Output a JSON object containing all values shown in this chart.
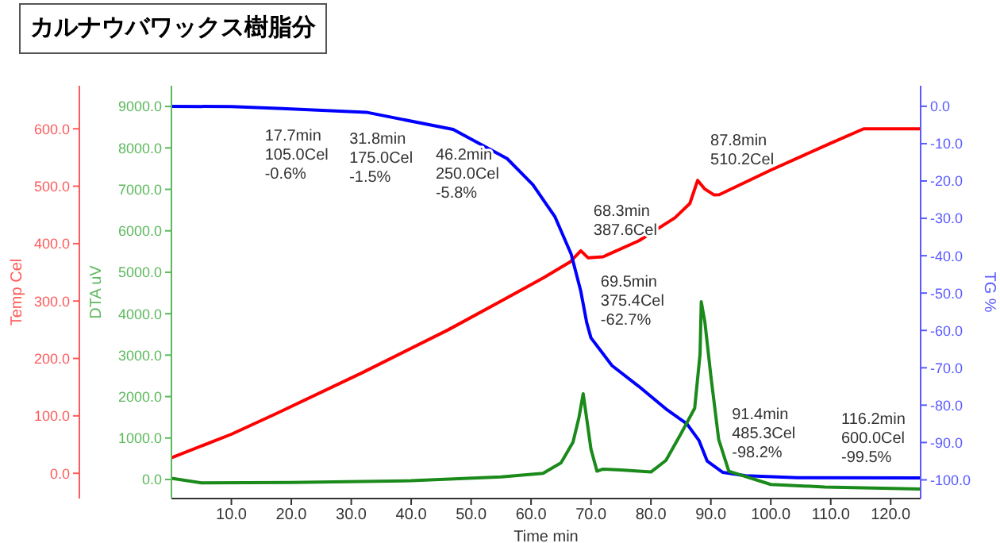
{
  "chart_data": {
    "type": "line",
    "title": "カルナウバワックス樹脂分",
    "xlabel": "Time min",
    "ylabel": "DTA uV",
    "y2label": "TG %",
    "y3label": "Temp Cel",
    "xlim": [
      0,
      125
    ],
    "xticks": [
      {
        "value": 10,
        "label": "10.0"
      },
      {
        "value": 20,
        "label": "20.0"
      },
      {
        "value": 30,
        "label": "30.0"
      },
      {
        "value": 40,
        "label": "40.0"
      },
      {
        "value": 50,
        "label": "50.0"
      },
      {
        "value": 60,
        "label": "60.0"
      },
      {
        "value": 70,
        "label": "70.0"
      },
      {
        "value": 80,
        "label": "80.0"
      },
      {
        "value": 90,
        "label": "90.0"
      },
      {
        "value": 100,
        "label": "100.0"
      },
      {
        "value": 110,
        "label": "110.0"
      },
      {
        "value": 120,
        "label": "120.0"
      }
    ],
    "ylim": [
      -460,
      9500
    ],
    "yticks": [
      {
        "value": 0,
        "label": "0.0"
      },
      {
        "value": 1000,
        "label": "1000.0"
      },
      {
        "value": 2000,
        "label": "2000.0"
      },
      {
        "value": 3000,
        "label": "3000.0"
      },
      {
        "value": 4000,
        "label": "4000.0"
      },
      {
        "value": 5000,
        "label": "5000.0"
      },
      {
        "value": 6000,
        "label": "6000.0"
      },
      {
        "value": 7000,
        "label": "7000.0"
      },
      {
        "value": 8000,
        "label": "8000.0"
      },
      {
        "value": 9000,
        "label": "9000.0"
      }
    ],
    "y2lim": [
      -105,
      5.5
    ],
    "y2ticks": [
      {
        "value": 0,
        "label": "0.0"
      },
      {
        "value": -10,
        "label": "-10.0"
      },
      {
        "value": -20,
        "label": "-20.0"
      },
      {
        "value": -30,
        "label": "-30.0"
      },
      {
        "value": -40,
        "label": "-40.0"
      },
      {
        "value": -50,
        "label": "-50.0"
      },
      {
        "value": -60,
        "label": "-60.0"
      },
      {
        "value": -70,
        "label": "-70.0"
      },
      {
        "value": -80,
        "label": "-80.0"
      },
      {
        "value": -90,
        "label": "-90.0"
      },
      {
        "value": -100,
        "label": "-100.0"
      }
    ],
    "y3lim": [
      -44,
      675
    ],
    "y3ticks": [
      {
        "value": 0,
        "label": "0.0"
      },
      {
        "value": 100,
        "label": "100.0"
      },
      {
        "value": 200,
        "label": "200.0"
      },
      {
        "value": 300,
        "label": "300.0"
      },
      {
        "value": 400,
        "label": "400.0"
      },
      {
        "value": 500,
        "label": "500.0"
      },
      {
        "value": 600,
        "label": "600.0"
      }
    ],
    "grid": false,
    "legend": false,
    "marker": "none",
    "line_style": "solid",
    "series": [
      {
        "color": "#ff0000",
        "axis": "y3",
        "x": [
          0,
          10,
          17.7,
          31.8,
          46.2,
          55,
          62,
          66.5,
          68.3,
          69.5,
          72,
          78,
          84,
          86.5,
          87.8,
          89,
          90.5,
          91.4,
          100,
          110,
          115.5,
          125
        ],
        "values": [
          27,
          68,
          105,
          175,
          250,
          300,
          340,
          368,
          387.6,
          375.4,
          377,
          405,
          445,
          470,
          510.2,
          495,
          485,
          485.3,
          528,
          575,
          600,
          600
        ]
      },
      {
        "color": "#0000ff",
        "axis": "y2",
        "x": [
          0,
          10,
          18.5,
          32.5,
          47,
          56,
          60.3,
          64,
          66.7,
          68.3,
          69.3,
          70,
          73.5,
          78,
          82.5,
          86,
          88,
          89.4,
          92,
          95.8,
          104.5,
          125
        ],
        "values": [
          0,
          -0.1,
          -0.6,
          -1.6,
          -6.2,
          -14,
          -21,
          -29.6,
          -39.6,
          -49.5,
          -58,
          -62,
          -69.4,
          -75,
          -81,
          -85,
          -89.4,
          -95,
          -98,
          -98.9,
          -99.4,
          -99.5
        ]
      },
      {
        "color": "#1a8a1a",
        "axis": "y",
        "x": [
          0,
          5,
          20,
          40,
          55,
          62,
          65,
          67,
          68,
          68.7,
          70,
          71,
          72,
          75,
          80,
          82.5,
          85,
          87.3,
          88.2,
          88.4,
          89,
          90,
          91.3,
          93,
          100,
          109,
          125
        ],
        "values": [
          30,
          -80,
          -70,
          -30,
          60,
          150,
          400,
          900,
          1500,
          2070,
          730,
          200,
          250,
          230,
          180,
          460,
          1100,
          1720,
          3030,
          4290,
          3800,
          2500,
          970,
          200,
          -120,
          -180,
          -230
        ]
      }
    ],
    "annotations": [
      {
        "text": "17.7min\n105.0Cel\n-0.6%",
        "x": 17.7,
        "y": 8950
      },
      {
        "text": "31.8min\n175.0Cel\n-1.5%",
        "x": 31.8,
        "y": 8870
      },
      {
        "text": "46.2min\n250.0Cel\n-5.8%",
        "x": 46.2,
        "y": 8480
      },
      {
        "text": "68.3min\n387.6Cel",
        "x": 68.3,
        "y": 5525
      },
      {
        "text": "87.8min\n510.2Cel",
        "x": 87.8,
        "y": 7220
      },
      {
        "text": "69.5min\n375.4Cel\n-62.7%",
        "x": 69.5,
        "y": 3360
      },
      {
        "text": "91.4min\n485.3Cel\n-98.2%",
        "x": 91.4,
        "y": 160
      },
      {
        "text": "116.2min\n600.0Cel\n-99.5%",
        "x": 116.2,
        "y": 45
      }
    ]
  }
}
